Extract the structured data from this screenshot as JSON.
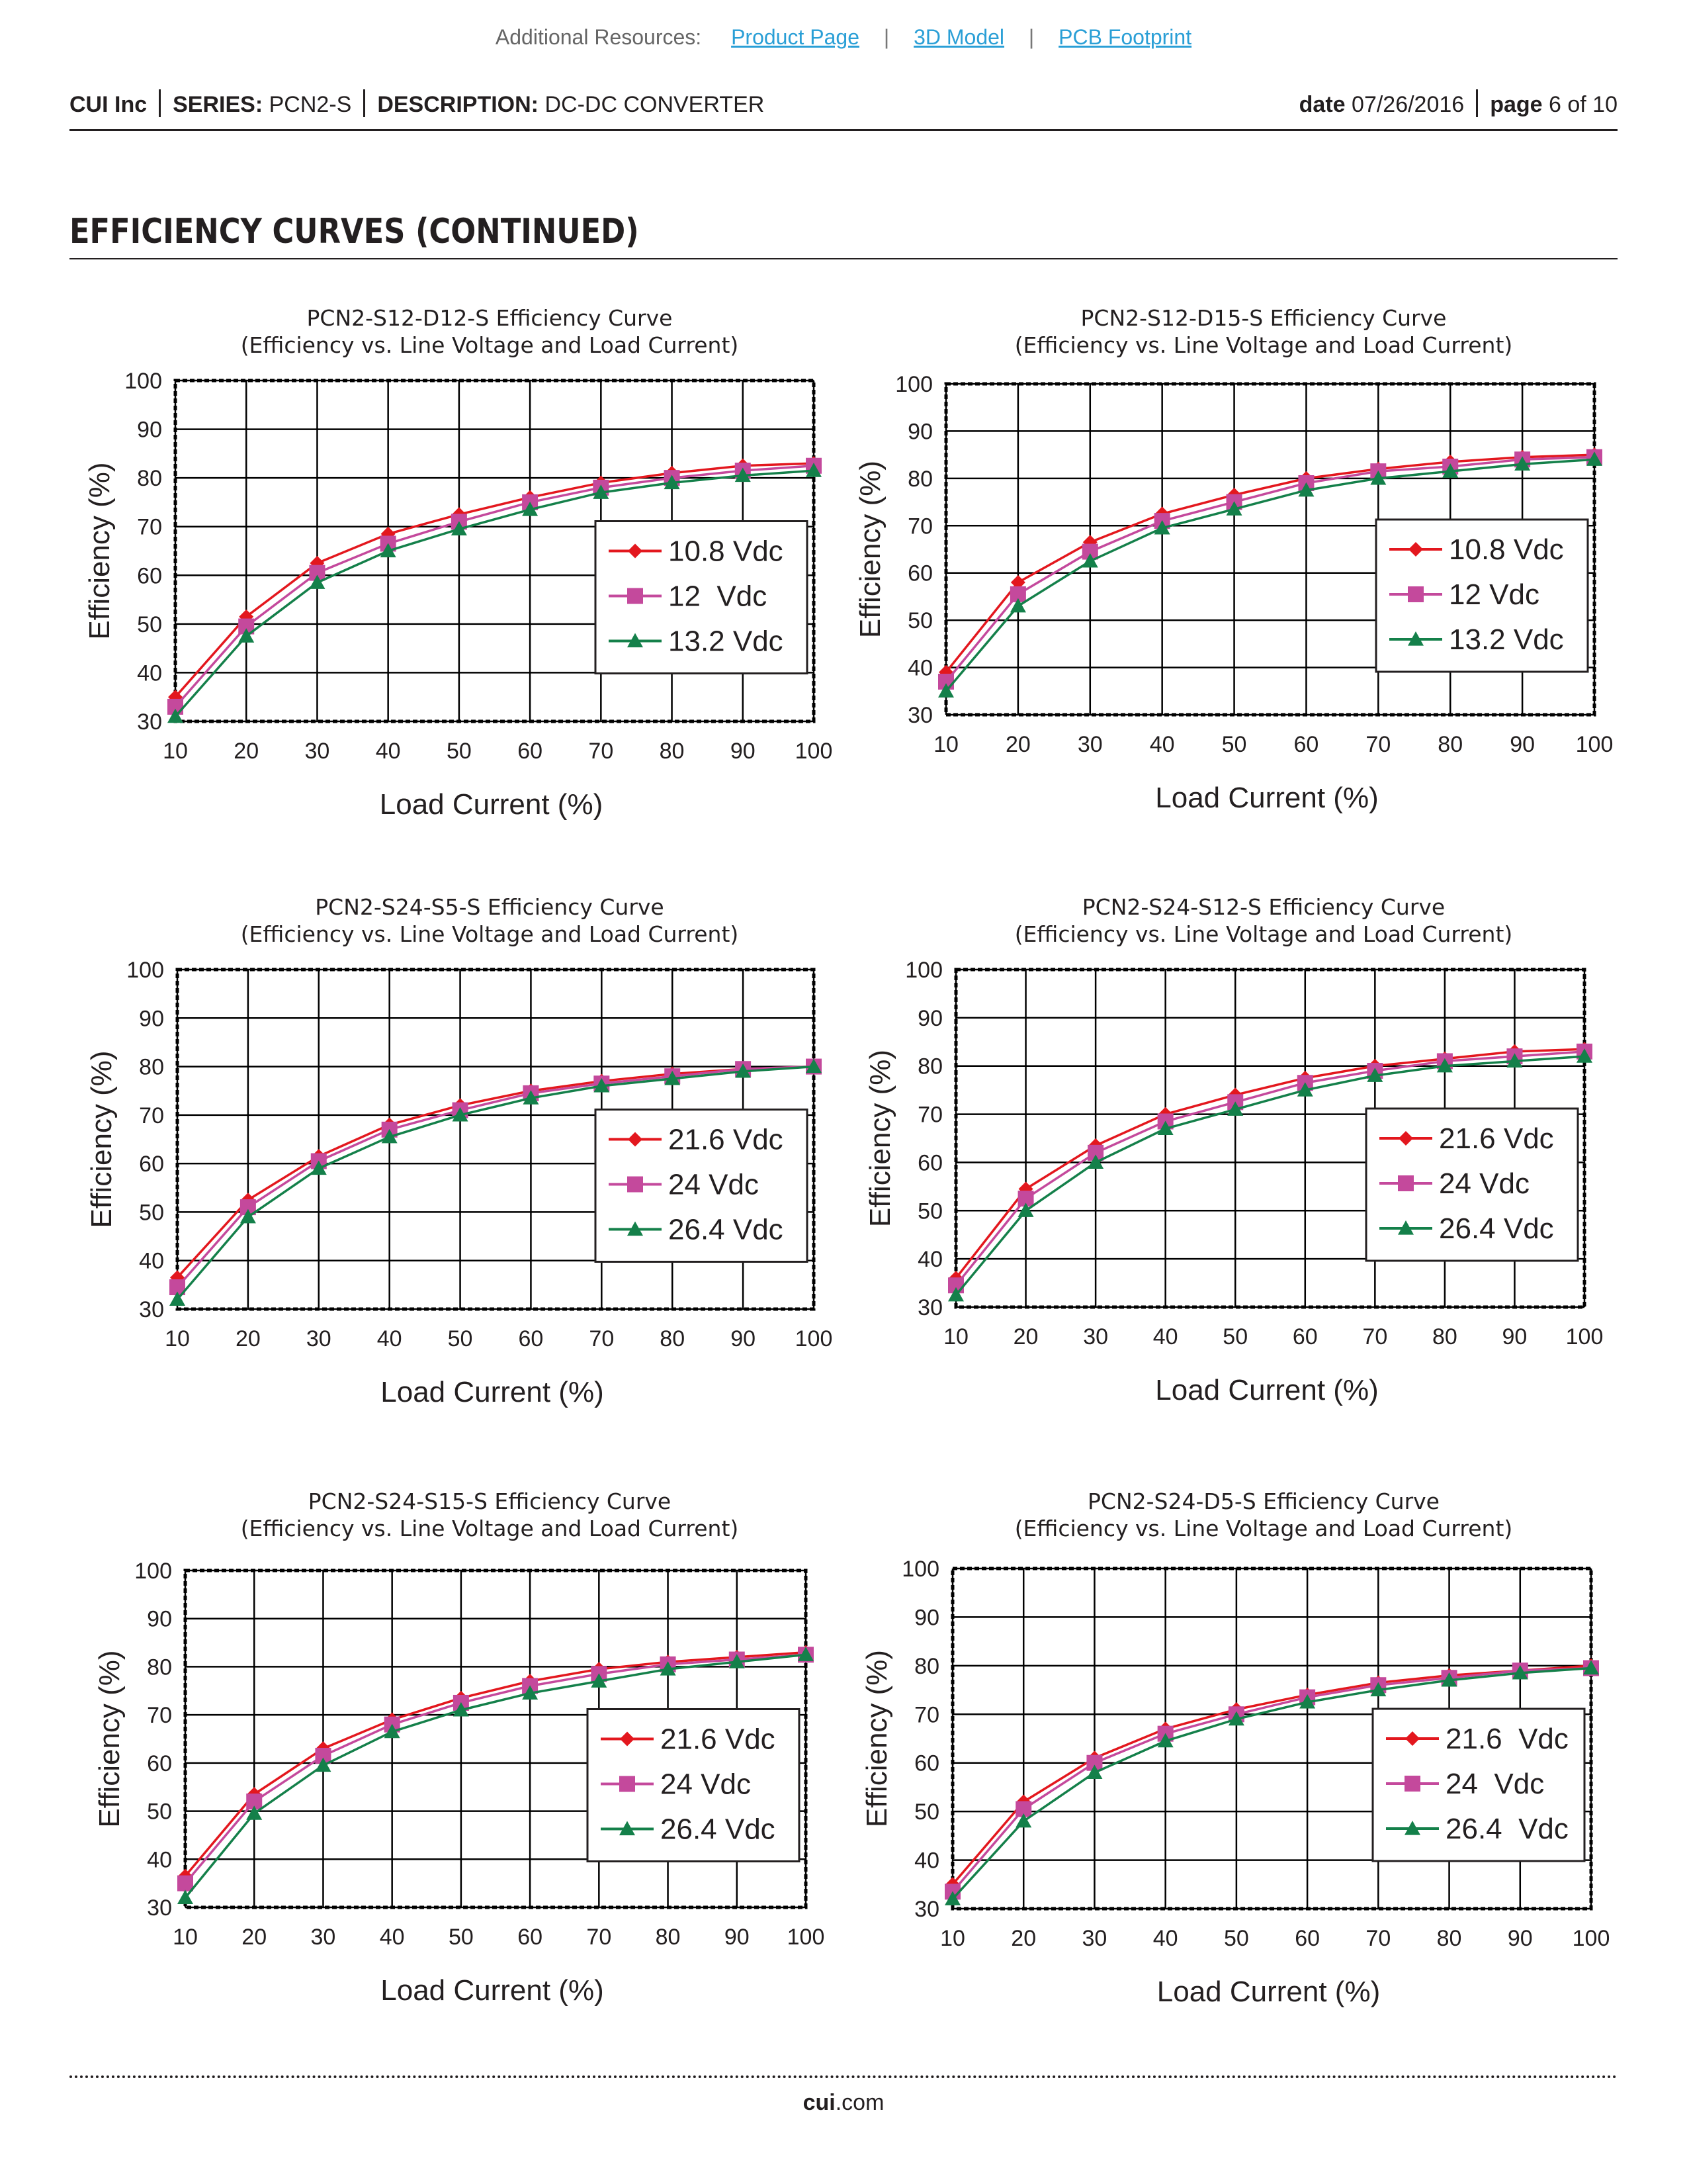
{
  "resources": {
    "label": "Additional Resources:",
    "links": [
      "Product Page",
      "3D Model",
      "PCB Footprint"
    ],
    "separator": "|"
  },
  "header": {
    "company": "CUI Inc",
    "series_label": "SERIES:",
    "series_value": "PCN2-S",
    "description_label": "DESCRIPTION:",
    "description_value": "DC-DC CONVERTER",
    "date_label": "date",
    "date_value": "07/26/2016",
    "page_label": "page",
    "page_value": "6 of 10"
  },
  "section_title": "EFFICIENCY CURVES (CONTINUED)",
  "colors": {
    "series": [
      "#e3171e",
      "#c4499c",
      "#14804a"
    ],
    "grid": "#000000"
  },
  "chart_data": [
    {
      "type": "line",
      "title": "PCN2-S12-D12-S Efficiency Curve",
      "subtitle": "(Efficiency vs. Line Voltage and Load Current)",
      "xlabel": "Load Current (%)",
      "ylabel": "Efficiency (%)",
      "xlim": [
        10,
        100
      ],
      "ylim": [
        30,
        100
      ],
      "xticks": [
        10,
        20,
        30,
        40,
        50,
        60,
        70,
        80,
        90,
        100
      ],
      "yticks": [
        30,
        40,
        50,
        60,
        70,
        80,
        90,
        100
      ],
      "legend_position": "center-right",
      "x": [
        10,
        20,
        30,
        40,
        50,
        60,
        70,
        80,
        90,
        100
      ],
      "series": [
        {
          "name": "10.8 Vdc",
          "marker": "diamond",
          "values": [
            35,
            51.5,
            62.5,
            68.5,
            72.5,
            76,
            79,
            81,
            82.5,
            83
          ]
        },
        {
          "name": "12  Vdc",
          "marker": "square",
          "values": [
            33,
            49.5,
            60.5,
            66.5,
            71,
            75,
            78,
            80,
            81.5,
            82.5
          ]
        },
        {
          "name": "13.2 Vdc",
          "marker": "triangle",
          "values": [
            31,
            47.5,
            58.5,
            65,
            69.5,
            73.5,
            77,
            79,
            80.5,
            81.5
          ]
        }
      ]
    },
    {
      "type": "line",
      "title": "PCN2-S12-D15-S Efficiency Curve",
      "subtitle": "(Efficiency vs. Line Voltage and Load Current)",
      "xlabel": "Load Current (%)",
      "ylabel": "Efficiency (%)",
      "xlim": [
        10,
        100
      ],
      "ylim": [
        30,
        100
      ],
      "xticks": [
        10,
        20,
        30,
        40,
        50,
        60,
        70,
        80,
        90,
        100
      ],
      "yticks": [
        30,
        40,
        50,
        60,
        70,
        80,
        90,
        100
      ],
      "legend_position": "center-right",
      "x": [
        10,
        20,
        30,
        40,
        50,
        60,
        70,
        80,
        90,
        100
      ],
      "series": [
        {
          "name": "10.8 Vdc",
          "marker": "diamond",
          "values": [
            39,
            58,
            66.5,
            72.5,
            76.5,
            80,
            82,
            83.5,
            84.5,
            85
          ]
        },
        {
          "name": "12 Vdc",
          "marker": "square",
          "values": [
            37,
            55.5,
            64.5,
            71,
            75,
            79,
            81.5,
            82.5,
            84,
            84.5
          ]
        },
        {
          "name": "13.2 Vdc",
          "marker": "triangle",
          "values": [
            35,
            53,
            62.5,
            69.5,
            73.5,
            77.5,
            80,
            81.5,
            83,
            84
          ]
        }
      ]
    },
    {
      "type": "line",
      "title": "PCN2-S24-S5-S Efficiency Curve",
      "subtitle": "(Efficiency vs. Line Voltage and Load Current)",
      "xlabel": "Load Current (%)",
      "ylabel": "Efficiency (%)",
      "xlim": [
        10,
        100
      ],
      "ylim": [
        30,
        100
      ],
      "xticks": [
        10,
        20,
        30,
        40,
        50,
        60,
        70,
        80,
        90,
        100
      ],
      "yticks": [
        30,
        40,
        50,
        60,
        70,
        80,
        90,
        100
      ],
      "legend_position": "center-right",
      "x": [
        10,
        20,
        30,
        40,
        50,
        60,
        70,
        80,
        90,
        100
      ],
      "series": [
        {
          "name": "21.6 Vdc",
          "marker": "diamond",
          "values": [
            36.5,
            52.5,
            61.5,
            68,
            72,
            75,
            77,
            78.5,
            79.5,
            80
          ]
        },
        {
          "name": "24 Vdc",
          "marker": "square",
          "values": [
            34.5,
            51,
            60.5,
            67,
            71,
            74.5,
            76.5,
            78,
            79.5,
            80
          ]
        },
        {
          "name": "26.4 Vdc",
          "marker": "triangle",
          "values": [
            32,
            49,
            59,
            65.5,
            70,
            73.5,
            76,
            77.5,
            79,
            80
          ]
        }
      ]
    },
    {
      "type": "line",
      "title": "PCN2-S24-S12-S Efficiency Curve",
      "subtitle": "(Efficiency vs. Line Voltage and Load Current)",
      "xlabel": "Load Current (%)",
      "ylabel": "Efficiency (%)",
      "xlim": [
        10,
        100
      ],
      "ylim": [
        30,
        100
      ],
      "xticks": [
        10,
        20,
        30,
        40,
        50,
        60,
        70,
        80,
        90,
        100
      ],
      "yticks": [
        30,
        40,
        50,
        60,
        70,
        80,
        90,
        100
      ],
      "legend_position": "center-right",
      "x": [
        10,
        20,
        30,
        40,
        50,
        60,
        70,
        80,
        90,
        100
      ],
      "series": [
        {
          "name": "21.6 Vdc",
          "marker": "diamond",
          "values": [
            36,
            54.5,
            63.5,
            70,
            74,
            77.5,
            80,
            81.5,
            83,
            83.5
          ]
        },
        {
          "name": "24 Vdc",
          "marker": "square",
          "values": [
            34.5,
            52.5,
            62,
            68.5,
            72.5,
            76.5,
            79,
            81,
            82,
            83
          ]
        },
        {
          "name": "26.4 Vdc",
          "marker": "triangle",
          "values": [
            32.5,
            50,
            60,
            67,
            71,
            75,
            78,
            80,
            81,
            82
          ]
        }
      ]
    },
    {
      "type": "line",
      "title": "PCN2-S24-S15-S Efficiency Curve",
      "subtitle": "(Efficiency vs. Line Voltage and Load Current)",
      "xlabel": "Load Current (%)",
      "ylabel": "Efficiency (%)",
      "xlim": [
        10,
        100
      ],
      "ylim": [
        30,
        100
      ],
      "xticks": [
        10,
        20,
        30,
        40,
        50,
        60,
        70,
        80,
        90,
        100
      ],
      "yticks": [
        30,
        40,
        50,
        60,
        70,
        80,
        90,
        100
      ],
      "legend_position": "center-right",
      "x": [
        10,
        20,
        30,
        40,
        50,
        60,
        70,
        80,
        90,
        100
      ],
      "series": [
        {
          "name": "21.6 Vdc",
          "marker": "diamond",
          "values": [
            36.5,
            53.5,
            63,
            69,
            73.5,
            77,
            79.5,
            81,
            82,
            83
          ]
        },
        {
          "name": "24 Vdc",
          "marker": "square",
          "values": [
            35,
            52,
            61.5,
            68,
            72.5,
            76,
            78.5,
            80.5,
            81.5,
            82.5
          ]
        },
        {
          "name": "26.4 Vdc",
          "marker": "triangle",
          "values": [
            32,
            49.5,
            59.5,
            66.5,
            71,
            74.5,
            77,
            79.5,
            81,
            82.5
          ]
        }
      ]
    },
    {
      "type": "line",
      "title": "PCN2-S24-D5-S Efficiency Curve",
      "subtitle": "(Efficiency vs. Line Voltage and Load Current)",
      "xlabel": "Load Current (%)",
      "ylabel": "Efficiency (%)",
      "xlim": [
        10,
        100
      ],
      "ylim": [
        30,
        100
      ],
      "xticks": [
        10,
        20,
        30,
        40,
        50,
        60,
        70,
        80,
        90,
        100
      ],
      "yticks": [
        30,
        40,
        50,
        60,
        70,
        80,
        90,
        100
      ],
      "legend_position": "center-right",
      "x": [
        10,
        20,
        30,
        40,
        50,
        60,
        70,
        80,
        90,
        100
      ],
      "series": [
        {
          "name": "21.6  Vdc",
          "marker": "diamond",
          "values": [
            35,
            52,
            61,
            67,
            71,
            74,
            76.5,
            78,
            79,
            80
          ]
        },
        {
          "name": "24  Vdc",
          "marker": "square",
          "values": [
            33.5,
            50.5,
            60,
            66,
            70,
            73.5,
            76,
            77.5,
            79,
            79.5
          ]
        },
        {
          "name": "26.4  Vdc",
          "marker": "triangle",
          "values": [
            32,
            48,
            58,
            64.5,
            69,
            72.5,
            75,
            77,
            78.5,
            79.5
          ]
        }
      ]
    }
  ],
  "footer": {
    "brand": "cui",
    "suffix": ".com"
  }
}
